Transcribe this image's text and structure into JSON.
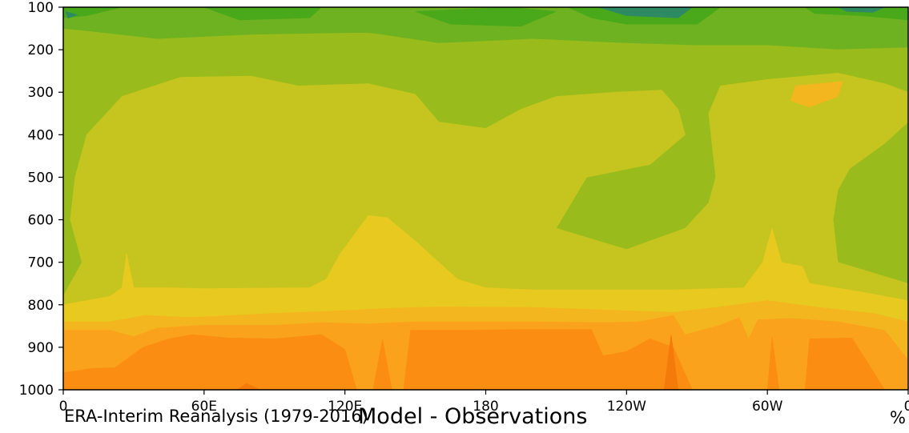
{
  "chart_data": {
    "type": "heatmap",
    "title": "Model - Observations",
    "source_label": "ERA-Interim Reanalysis (1979-2016)",
    "units_label": "%",
    "x_tick_labels": [
      "0",
      "60E",
      "120E",
      "180",
      "120W",
      "60W",
      "0"
    ],
    "x_ticks_deg": [
      0,
      60,
      120,
      180,
      240,
      300,
      360
    ],
    "xlim": [
      0,
      360
    ],
    "y_tick_labels": [
      "100",
      "200",
      "300",
      "400",
      "500",
      "600",
      "700",
      "800",
      "900",
      "1000"
    ],
    "y_ticks": [
      100,
      200,
      300,
      400,
      500,
      600,
      700,
      800,
      900,
      1000
    ],
    "ylim": [
      1000,
      100
    ],
    "y_inverted": true,
    "palette": [
      "#2e8a63",
      "#3f9a2e",
      "#4aa91a",
      "#6fb221",
      "#99bc1c",
      "#c6c51f",
      "#e8c91f",
      "#f4b61e",
      "#fba21c",
      "#fb8e12",
      "#f47a0a"
    ],
    "bands": [
      {
        "level": 4,
        "pts": [
          [
            0,
            150
          ],
          [
            40,
            175
          ],
          [
            80,
            165
          ],
          [
            130,
            160
          ],
          [
            160,
            185
          ],
          [
            200,
            175
          ],
          [
            240,
            185
          ],
          [
            270,
            190
          ],
          [
            300,
            190
          ],
          [
            330,
            200
          ],
          [
            360,
            195
          ],
          [
            360,
            1000
          ],
          [
            0,
            1000
          ]
        ]
      },
      {
        "level": 5,
        "pts": [
          [
            0,
            1000
          ],
          [
            0,
            780
          ],
          [
            8,
            700
          ],
          [
            3,
            600
          ],
          [
            5,
            500
          ],
          [
            10,
            400
          ],
          [
            25,
            310
          ],
          [
            50,
            265
          ],
          [
            80,
            262
          ],
          [
            100,
            285
          ],
          [
            130,
            280
          ],
          [
            150,
            305
          ],
          [
            160,
            370
          ],
          [
            180,
            385
          ],
          [
            195,
            340
          ],
          [
            210,
            310
          ],
          [
            235,
            300
          ],
          [
            255,
            295
          ],
          [
            262,
            340
          ],
          [
            265,
            400
          ],
          [
            250,
            470
          ],
          [
            223,
            500
          ],
          [
            210,
            620
          ],
          [
            240,
            670
          ],
          [
            265,
            620
          ],
          [
            275,
            560
          ],
          [
            278,
            500
          ],
          [
            275,
            350
          ],
          [
            280,
            285
          ],
          [
            300,
            270
          ],
          [
            330,
            255
          ],
          [
            350,
            280
          ],
          [
            360,
            300
          ],
          [
            360,
            370
          ],
          [
            350,
            420
          ],
          [
            335,
            480
          ],
          [
            330,
            530
          ],
          [
            328,
            600
          ],
          [
            330,
            700
          ],
          [
            360,
            750
          ],
          [
            360,
            1000
          ]
        ]
      },
      {
        "level": 6,
        "pts": [
          [
            0,
            1000
          ],
          [
            0,
            800
          ],
          [
            20,
            780
          ],
          [
            25,
            760
          ],
          [
            27,
            680
          ],
          [
            30,
            760
          ],
          [
            45,
            760
          ],
          [
            60,
            762
          ],
          [
            105,
            760
          ],
          [
            112,
            740
          ],
          [
            118,
            680
          ],
          [
            130,
            590
          ],
          [
            138,
            595
          ],
          [
            150,
            650
          ],
          [
            160,
            700
          ],
          [
            168,
            740
          ],
          [
            180,
            760
          ],
          [
            200,
            765
          ],
          [
            260,
            765
          ],
          [
            290,
            760
          ],
          [
            298,
            700
          ],
          [
            302,
            620
          ],
          [
            306,
            700
          ],
          [
            315,
            710
          ],
          [
            318,
            750
          ],
          [
            340,
            770
          ],
          [
            360,
            790
          ],
          [
            360,
            1000
          ]
        ]
      },
      {
        "level": 7,
        "pts": [
          [
            0,
            1000
          ],
          [
            0,
            840
          ],
          [
            20,
            840
          ],
          [
            35,
            825
          ],
          [
            55,
            830
          ],
          [
            90,
            820
          ],
          [
            115,
            815
          ],
          [
            140,
            808
          ],
          [
            160,
            805
          ],
          [
            200,
            806
          ],
          [
            230,
            812
          ],
          [
            260,
            818
          ],
          [
            280,
            805
          ],
          [
            300,
            790
          ],
          [
            320,
            805
          ],
          [
            345,
            820
          ],
          [
            360,
            840
          ],
          [
            360,
            1000
          ]
        ]
      },
      {
        "level": 8,
        "pts": [
          [
            0,
            1000
          ],
          [
            0,
            860
          ],
          [
            20,
            860
          ],
          [
            30,
            875
          ],
          [
            40,
            855
          ],
          [
            60,
            848
          ],
          [
            90,
            848
          ],
          [
            110,
            842
          ],
          [
            130,
            845
          ],
          [
            150,
            840
          ],
          [
            200,
            840
          ],
          [
            230,
            842
          ],
          [
            245,
            840
          ],
          [
            260,
            825
          ],
          [
            265,
            870
          ],
          [
            280,
            848
          ],
          [
            288,
            830
          ],
          [
            292,
            880
          ],
          [
            296,
            835
          ],
          [
            310,
            832
          ],
          [
            330,
            840
          ],
          [
            350,
            860
          ],
          [
            360,
            930
          ],
          [
            360,
            1000
          ]
        ]
      },
      {
        "level": 9,
        "pts": [
          [
            0,
            1000
          ],
          [
            0,
            960
          ],
          [
            12,
            950
          ],
          [
            22,
            948
          ],
          [
            34,
            900
          ],
          [
            45,
            880
          ],
          [
            55,
            870
          ],
          [
            70,
            878
          ],
          [
            90,
            880
          ],
          [
            110,
            870
          ],
          [
            120,
            905
          ],
          [
            125,
            1000
          ],
          [
            132,
            1000
          ],
          [
            136,
            880
          ],
          [
            140,
            1000
          ],
          [
            145,
            1000
          ],
          [
            148,
            860
          ],
          [
            160,
            860
          ],
          [
            175,
            860
          ],
          [
            195,
            858
          ],
          [
            225,
            858
          ],
          [
            230,
            920
          ],
          [
            240,
            910
          ],
          [
            250,
            880
          ],
          [
            260,
            900
          ],
          [
            268,
            1000
          ],
          [
            300,
            1000
          ],
          [
            302,
            875
          ],
          [
            305,
            1000
          ],
          [
            316,
            1000
          ],
          [
            318,
            880
          ],
          [
            336,
            878
          ],
          [
            342,
            930
          ],
          [
            350,
            1000
          ],
          [
            360,
            1000
          ]
        ]
      },
      {
        "level": 10,
        "pts": [
          [
            256,
            1000
          ],
          [
            259,
            870
          ],
          [
            262,
            1000
          ]
        ]
      },
      {
        "level": 10,
        "pts": [
          [
            74,
            1000
          ],
          [
            78,
            985
          ],
          [
            84,
            1000
          ]
        ]
      },
      {
        "level": 3,
        "pts": [
          [
            0,
            100
          ],
          [
            360,
            100
          ],
          [
            360,
            140
          ],
          [
            330,
            145
          ],
          [
            310,
            150
          ],
          [
            290,
            170
          ],
          [
            260,
            160
          ],
          [
            240,
            150
          ],
          [
            200,
            162
          ],
          [
            160,
            168
          ],
          [
            130,
            160
          ],
          [
            100,
            150
          ],
          [
            60,
            140
          ],
          [
            40,
            150
          ],
          [
            20,
            160
          ],
          [
            0,
            150
          ]
        ]
      },
      {
        "level": 2,
        "pts": [
          [
            0,
            100
          ],
          [
            25,
            100
          ],
          [
            10,
            120
          ],
          [
            0,
            125
          ]
        ]
      },
      {
        "level": 2,
        "pts": [
          [
            60,
            100
          ],
          [
            110,
            100
          ],
          [
            105,
            125
          ],
          [
            75,
            130
          ]
        ]
      },
      {
        "level": 2,
        "pts": [
          [
            150,
            110
          ],
          [
            190,
            100
          ],
          [
            210,
            110
          ],
          [
            195,
            145
          ],
          [
            165,
            140
          ]
        ]
      },
      {
        "level": 2,
        "pts": [
          [
            215,
            100
          ],
          [
            280,
            100
          ],
          [
            270,
            140
          ],
          [
            240,
            140
          ],
          [
            225,
            125
          ]
        ]
      },
      {
        "level": 2,
        "pts": [
          [
            316,
            100
          ],
          [
            360,
            100
          ],
          [
            360,
            130
          ],
          [
            340,
            120
          ],
          [
            320,
            115
          ]
        ]
      },
      {
        "level": 0,
        "pts": [
          [
            228,
            100
          ],
          [
            268,
            100
          ],
          [
            262,
            125
          ],
          [
            240,
            120
          ]
        ]
      },
      {
        "level": 0,
        "pts": [
          [
            330,
            100
          ],
          [
            350,
            100
          ],
          [
            345,
            112
          ],
          [
            334,
            110
          ]
        ]
      },
      {
        "level": 0,
        "pts": [
          [
            1,
            110
          ],
          [
            6,
            118
          ],
          [
            2,
            126
          ]
        ]
      },
      {
        "level": 7,
        "pts": [
          [
            312,
            285
          ],
          [
            332,
            275
          ],
          [
            330,
            310
          ],
          [
            318,
            335
          ],
          [
            310,
            320
          ]
        ]
      }
    ]
  }
}
